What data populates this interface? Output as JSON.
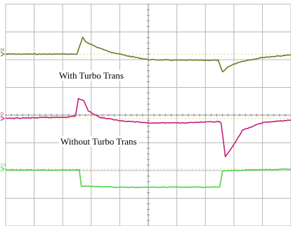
{
  "chart_data": {
    "type": "line",
    "grid": true,
    "grid_divisions": {
      "x": 10,
      "y": 8
    },
    "x_range": [
      0,
      10
    ],
    "y_range": [
      0,
      8
    ],
    "colors": {
      "background": "#ffffff",
      "grid": "#b8b8b8",
      "reference": "#e3d27a"
    },
    "series": [
      {
        "channel_marker": "M",
        "color": "#6b7a2a",
        "reference_level": 6.2,
        "points": [
          [
            0,
            6.2
          ],
          [
            2.5,
            6.2
          ],
          [
            2.7,
            6.8
          ],
          [
            2.8,
            6.65
          ],
          [
            3.2,
            6.45
          ],
          [
            3.6,
            6.3
          ],
          [
            4.2,
            6.15
          ],
          [
            5.0,
            6.0
          ],
          [
            6.0,
            5.98
          ],
          [
            7.4,
            5.98
          ],
          [
            7.45,
            5.97
          ],
          [
            7.6,
            5.55
          ],
          [
            7.8,
            5.75
          ],
          [
            8.2,
            5.92
          ],
          [
            9.0,
            6.08
          ],
          [
            10,
            6.17
          ]
        ]
      },
      {
        "channel_marker": "D",
        "color": "#c2207a",
        "reference_level": 3.88,
        "points": [
          [
            0,
            3.88
          ],
          [
            2.2,
            3.93
          ],
          [
            2.45,
            3.97
          ],
          [
            2.55,
            4.6
          ],
          [
            2.75,
            4.5
          ],
          [
            2.9,
            4.15
          ],
          [
            3.3,
            3.92
          ],
          [
            4.0,
            3.8
          ],
          [
            5.0,
            3.72
          ],
          [
            6.0,
            3.72
          ],
          [
            7.5,
            3.76
          ],
          [
            7.55,
            3.7
          ],
          [
            7.7,
            2.5
          ],
          [
            7.85,
            2.7
          ],
          [
            8.3,
            3.45
          ],
          [
            9.0,
            3.73
          ],
          [
            10,
            3.82
          ]
        ]
      },
      {
        "channel_marker": "C4",
        "color": "#4fd24a",
        "reference_level": 2.05,
        "points": [
          [
            0,
            2.02
          ],
          [
            2.58,
            2.02
          ],
          [
            2.65,
            1.45
          ],
          [
            2.9,
            1.43
          ],
          [
            4.0,
            1.4
          ],
          [
            5.0,
            1.4
          ],
          [
            7.5,
            1.4
          ],
          [
            7.6,
            1.98
          ],
          [
            7.75,
            2.0
          ],
          [
            10,
            2.05
          ]
        ]
      }
    ],
    "annotations": [
      "With Turbo Trans",
      "Without Turbo Trans"
    ]
  }
}
